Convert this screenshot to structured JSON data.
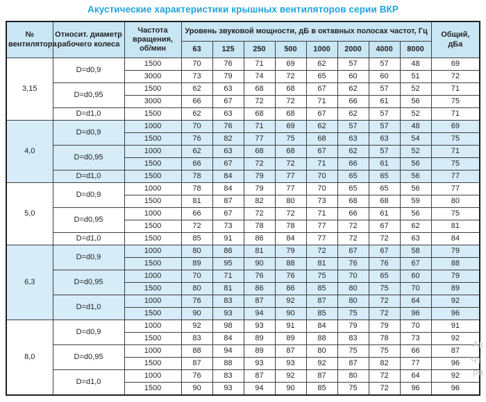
{
  "title": "Акустические характеристики крышных вентиляторов серии ВКР",
  "colors": {
    "title_blue": "#1fa3dd",
    "header_bg": "#c9e6f5",
    "stripe_bg": "#d6ecf8",
    "grid_line": "#3c3c3c"
  },
  "watermark": {
    "fragments": [
      "Ак",
      "Чт",
      "ра"
    ]
  },
  "table": {
    "headers": {
      "fan": "№ вентилятора",
      "diameter": "Относит. диаметр рабочего колеса",
      "rpm": "Частота вращения, об/мин",
      "span": "Уровень звуковой мощности, дБ в октавных полосах частот, Гц",
      "freqs": [
        "63",
        "125",
        "250",
        "500",
        "1000",
        "2000",
        "4000",
        "8000"
      ],
      "total": "Общий, дБа"
    },
    "groups": [
      {
        "fan": "3,15",
        "shaded": false,
        "subgroups": [
          {
            "d": "D=d0,9",
            "rows": [
              {
                "rpm": "1500",
                "values": [
                  70,
                  76,
                  71,
                  69,
                  62,
                  57,
                  57,
                  48
                ],
                "total": 69
              },
              {
                "rpm": "3000",
                "values": [
                  73,
                  79,
                  74,
                  72,
                  65,
                  60,
                  60,
                  51
                ],
                "total": 72
              }
            ]
          },
          {
            "d": "D=d0,95",
            "rows": [
              {
                "rpm": "1500",
                "values": [
                  62,
                  63,
                  68,
                  68,
                  67,
                  62,
                  57,
                  52
                ],
                "total": 71
              },
              {
                "rpm": "3000",
                "values": [
                  66,
                  67,
                  72,
                  72,
                  71,
                  66,
                  61,
                  56
                ],
                "total": 75
              }
            ]
          },
          {
            "d": "D=d1,0",
            "rows": [
              {
                "rpm": "1500",
                "values": [
                  62,
                  63,
                  68,
                  68,
                  67,
                  62,
                  57,
                  52
                ],
                "total": 71
              }
            ]
          }
        ]
      },
      {
        "fan": "4,0",
        "shaded": true,
        "subgroups": [
          {
            "d": "D=d0,9",
            "rows": [
              {
                "rpm": "1000",
                "values": [
                  70,
                  76,
                  71,
                  69,
                  62,
                  57,
                  57,
                  48
                ],
                "total": 69
              },
              {
                "rpm": "1500",
                "values": [
                  76,
                  82,
                  77,
                  75,
                  68,
                  63,
                  63,
                  54
                ],
                "total": 75
              }
            ]
          },
          {
            "d": "D=d0,95",
            "rows": [
              {
                "rpm": "1000",
                "values": [
                  62,
                  63,
                  68,
                  68,
                  67,
                  62,
                  57,
                  52
                ],
                "total": 71
              },
              {
                "rpm": "1500",
                "values": [
                  66,
                  67,
                  72,
                  72,
                  71,
                  66,
                  61,
                  56
                ],
                "total": 75
              }
            ]
          },
          {
            "d": "D=d1,0",
            "rows": [
              {
                "rpm": "1500",
                "values": [
                  78,
                  84,
                  79,
                  77,
                  70,
                  65,
                  65,
                  56
                ],
                "total": 77
              }
            ]
          }
        ]
      },
      {
        "fan": "5,0",
        "shaded": false,
        "subgroups": [
          {
            "d": "D=d0,9",
            "rows": [
              {
                "rpm": "1000",
                "values": [
                  78,
                  84,
                  79,
                  77,
                  70,
                  65,
                  65,
                  56
                ],
                "total": 77
              },
              {
                "rpm": "1500",
                "values": [
                  81,
                  87,
                  82,
                  80,
                  73,
                  68,
                  68,
                  59
                ],
                "total": 80
              }
            ]
          },
          {
            "d": "D=d0,95",
            "rows": [
              {
                "rpm": "1000",
                "values": [
                  66,
                  67,
                  72,
                  72,
                  71,
                  66,
                  61,
                  56
                ],
                "total": 75
              },
              {
                "rpm": "1500",
                "values": [
                  72,
                  73,
                  78,
                  78,
                  77,
                  72,
                  67,
                  62
                ],
                "total": 81
              }
            ]
          },
          {
            "d": "D=d1,0",
            "rows": [
              {
                "rpm": "1500",
                "values": [
                  85,
                  91,
                  86,
                  84,
                  77,
                  72,
                  72,
                  63
                ],
                "total": 84
              }
            ]
          }
        ]
      },
      {
        "fan": "6,3",
        "shaded": true,
        "subgroups": [
          {
            "d": "D=d0,9",
            "rows": [
              {
                "rpm": "1000",
                "values": [
                  80,
                  86,
                  81,
                  79,
                  72,
                  67,
                  67,
                  58
                ],
                "total": 79
              },
              {
                "rpm": "1500",
                "values": [
                  89,
                  95,
                  90,
                  88,
                  81,
                  76,
                  76,
                  67
                ],
                "total": 88
              }
            ]
          },
          {
            "d": "D=d0,95",
            "rows": [
              {
                "rpm": "1000",
                "values": [
                  70,
                  71,
                  76,
                  76,
                  75,
                  70,
                  65,
                  60
                ],
                "total": 79
              },
              {
                "rpm": "1500",
                "values": [
                  80,
                  81,
                  86,
                  86,
                  85,
                  80,
                  75,
                  70
                ],
                "total": 89
              }
            ]
          },
          {
            "d": "D=d1,0",
            "rows": [
              {
                "rpm": "1000",
                "values": [
                  76,
                  83,
                  87,
                  92,
                  87,
                  80,
                  72,
                  64
                ],
                "total": 92
              },
              {
                "rpm": "1500",
                "values": [
                  90,
                  93,
                  94,
                  90,
                  85,
                  75,
                  72,
                  96
                ],
                "total": 96
              }
            ]
          }
        ]
      },
      {
        "fan": "8,0",
        "shaded": false,
        "subgroups": [
          {
            "d": "D=d0,9",
            "rows": [
              {
                "rpm": "1000",
                "values": [
                  92,
                  98,
                  93,
                  91,
                  84,
                  79,
                  79,
                  70
                ],
                "total": 91
              },
              {
                "rpm": "1500",
                "values": [
                  83,
                  84,
                  89,
                  89,
                  88,
                  83,
                  78,
                  73
                ],
                "total": 92
              }
            ]
          },
          {
            "d": "D=d0,95",
            "rows": [
              {
                "rpm": "1000",
                "values": [
                  88,
                  94,
                  89,
                  87,
                  80,
                  75,
                  75,
                  66
                ],
                "total": 87
              },
              {
                "rpm": "1500",
                "values": [
                  87,
                  88,
                  93,
                  93,
                  92,
                  87,
                  82,
                  77
                ],
                "total": 96
              }
            ]
          },
          {
            "d": "D=d1,0",
            "rows": [
              {
                "rpm": "1000",
                "values": [
                  76,
                  83,
                  87,
                  92,
                  87,
                  80,
                  72,
                  64
                ],
                "total": 92
              },
              {
                "rpm": "1500",
                "values": [
                  90,
                  93,
                  94,
                  90,
                  85,
                  75,
                  72,
                  96
                ],
                "total": 96
              }
            ]
          }
        ]
      }
    ]
  }
}
